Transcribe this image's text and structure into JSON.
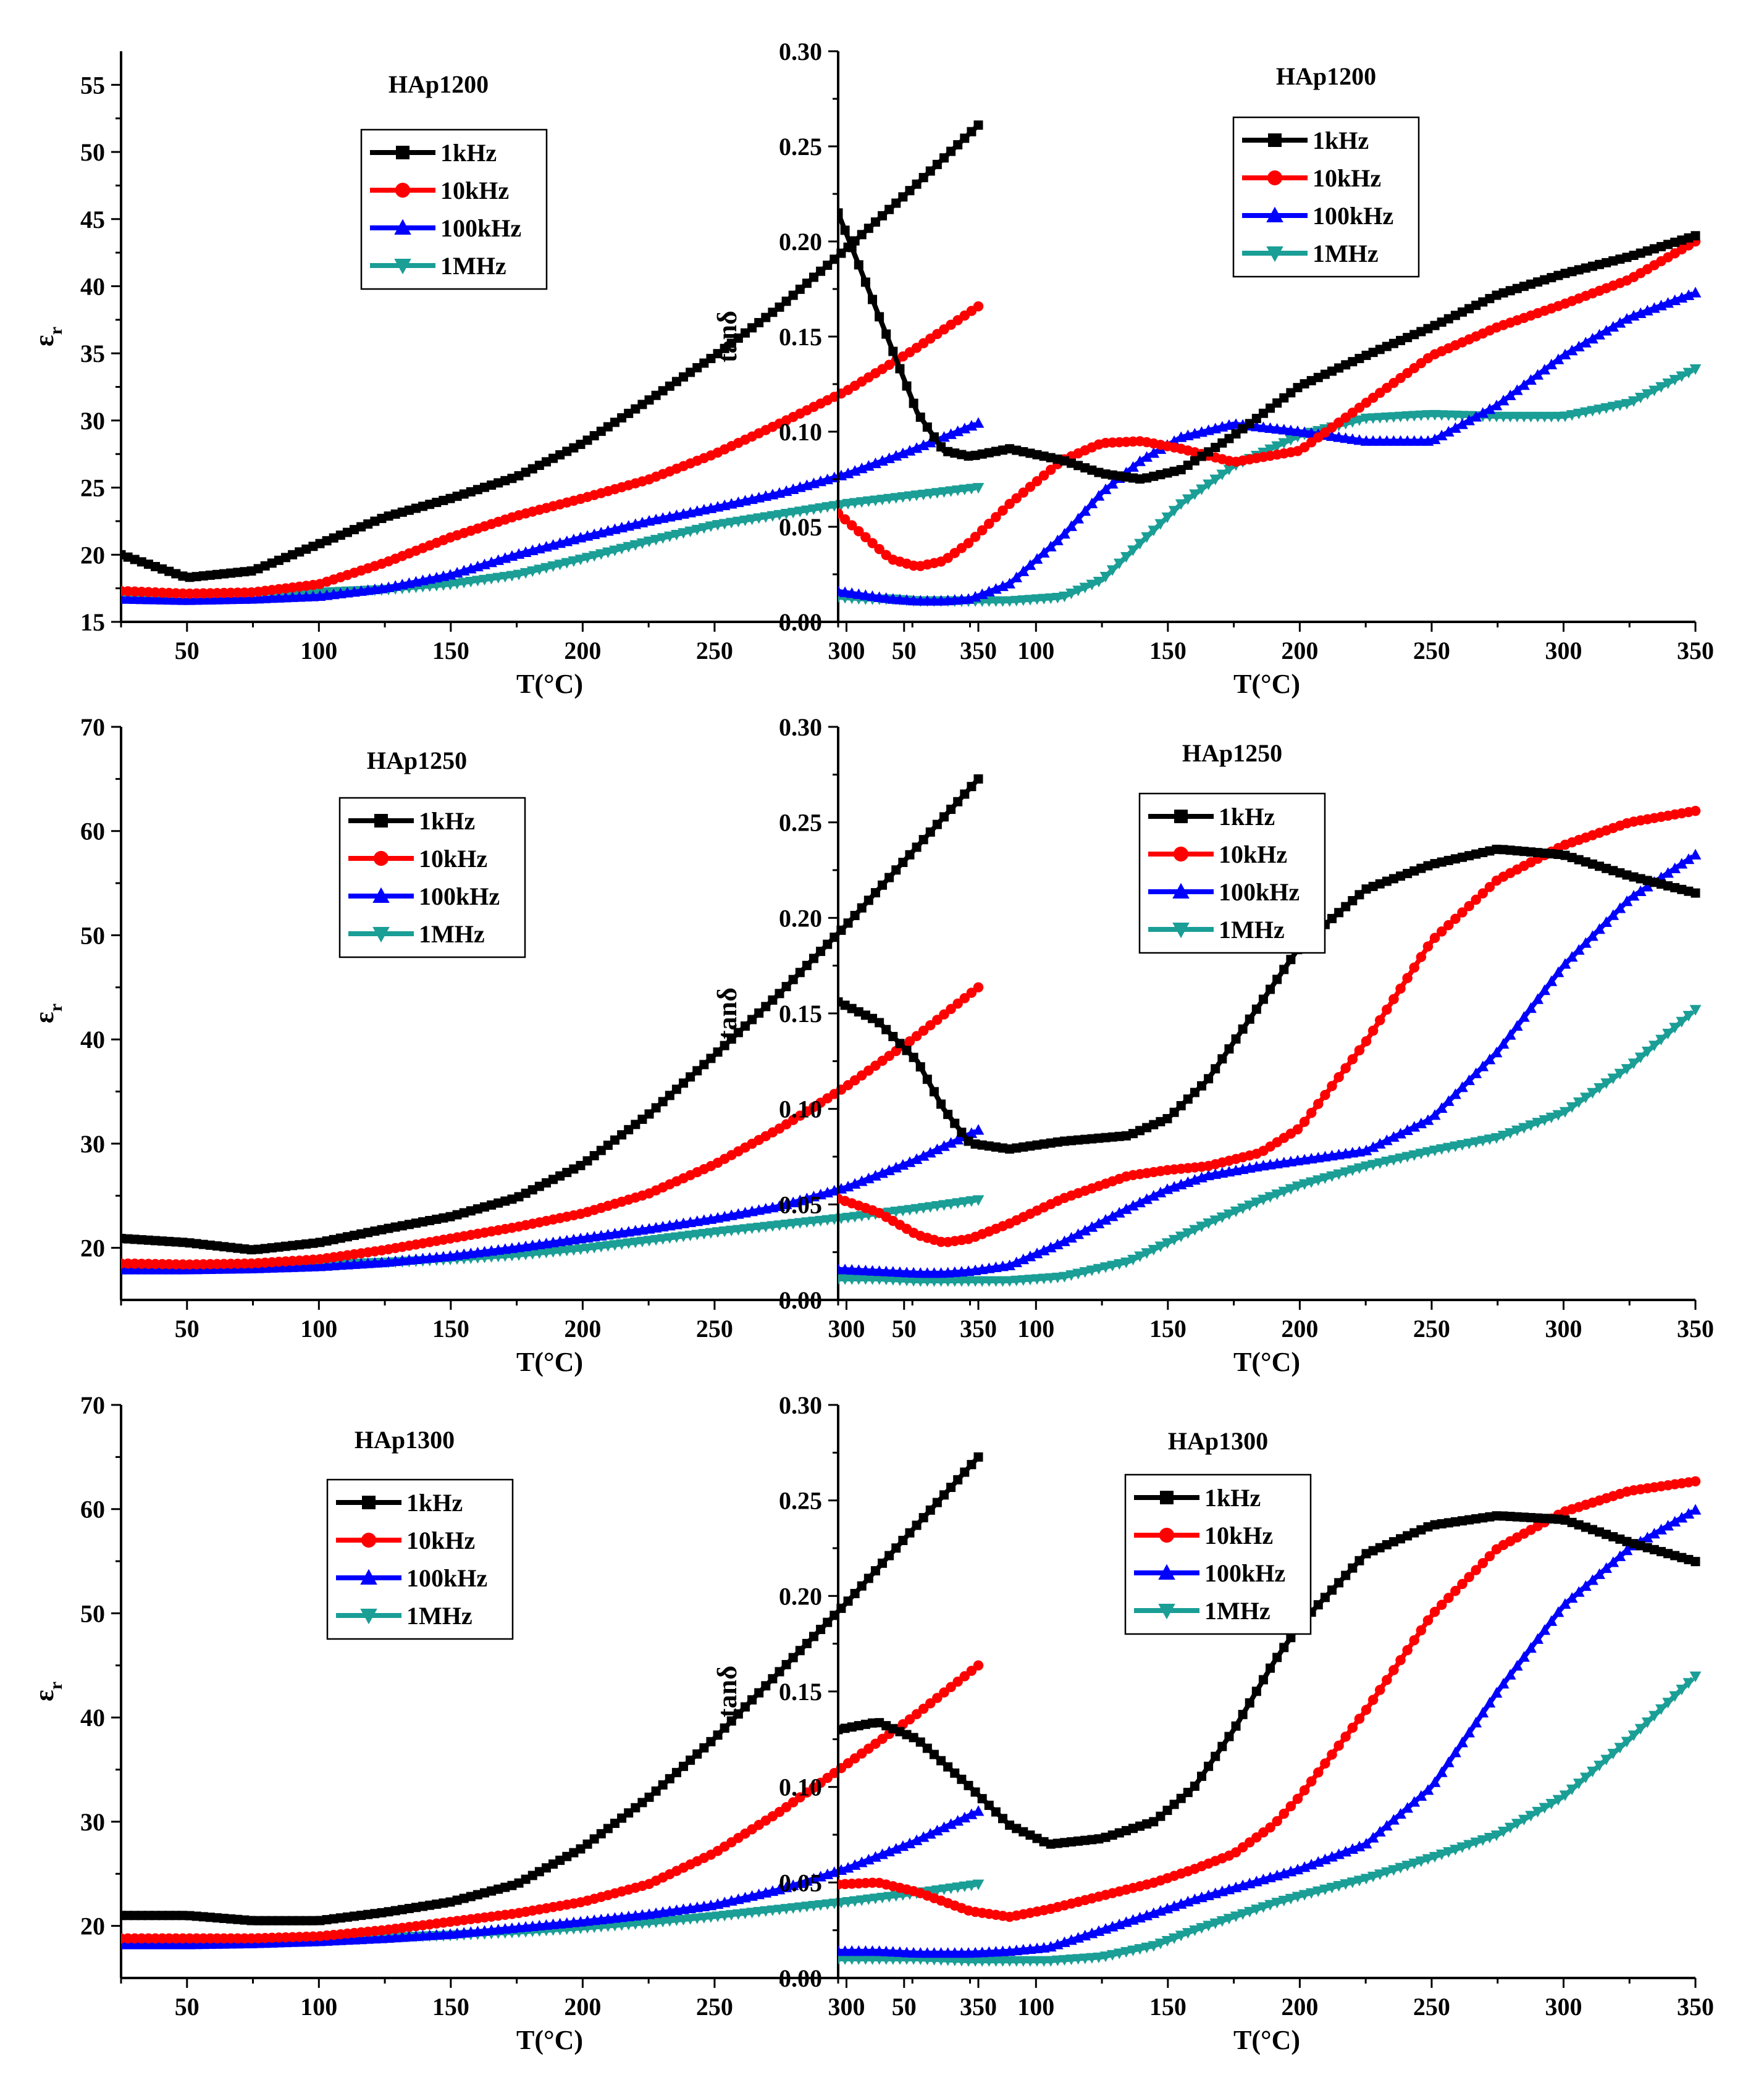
{
  "figure": {
    "xlabel": "T(°C)",
    "ylabel_eps_main": "ε",
    "ylabel_eps_sub": "r",
    "ylabel_tan": "tanδ"
  },
  "series_colors": {
    "1kHz": "#000000",
    "10kHz": "#ff0000",
    "100kHz": "#0000ff",
    "1MHz": "#1a9e96"
  },
  "series_markers": {
    "1kHz": "square",
    "10kHz": "circle",
    "100kHz": "triangle-up",
    "1MHz": "triangle-down"
  },
  "chart_data": [
    {
      "type": "line",
      "title": "HAp1200",
      "xlabel": "T(°C)",
      "ylabel": "εr",
      "xlim": [
        25,
        350
      ],
      "ylim": [
        15,
        57.5
      ],
      "xticks": [
        50,
        100,
        150,
        200,
        250,
        300,
        350
      ],
      "yticks": [
        15,
        20,
        25,
        30,
        35,
        40,
        45,
        50,
        55
      ],
      "ytick_labels": [
        "15",
        "20",
        "25",
        "30",
        "35",
        "40",
        "45",
        "50",
        "55"
      ],
      "x": [
        25,
        50,
        75,
        100,
        125,
        150,
        175,
        200,
        225,
        250,
        275,
        300,
        325,
        350
      ],
      "series": [
        {
          "name": "1kHz",
          "values": [
            20.0,
            18.3,
            18.8,
            20.8,
            22.8,
            24.2,
            25.8,
            28.3,
            31.5,
            34.8,
            38.5,
            42.8,
            47.3,
            52.0
          ]
        },
        {
          "name": "10kHz",
          "values": [
            17.3,
            17.1,
            17.2,
            17.8,
            19.4,
            21.3,
            22.9,
            24.2,
            25.6,
            27.5,
            29.8,
            32.2,
            35.2,
            38.5
          ]
        },
        {
          "name": "100kHz",
          "values": [
            16.7,
            16.6,
            16.7,
            16.9,
            17.5,
            18.5,
            20.0,
            21.3,
            22.5,
            23.5,
            24.6,
            26.0,
            27.8,
            29.8
          ]
        },
        {
          "name": "1MHz",
          "values": [
            17.0,
            17.0,
            17.1,
            17.2,
            17.4,
            17.8,
            18.5,
            19.7,
            21.0,
            22.2,
            23.0,
            23.8,
            24.4,
            25.0
          ]
        }
      ]
    },
    {
      "type": "line",
      "title": "HAp1200",
      "xlabel": "T(°C)",
      "ylabel": "tanδ",
      "xlim": [
        25,
        350
      ],
      "ylim": [
        0,
        0.3
      ],
      "xticks": [
        50,
        100,
        150,
        200,
        250,
        300,
        350
      ],
      "yticks": [
        0,
        0.05,
        0.1,
        0.15,
        0.2,
        0.25,
        0.3
      ],
      "ytick_labels": [
        "0.00",
        "0.05",
        "0.10",
        "0.15",
        "0.20",
        "0.25",
        "0.30"
      ],
      "x": [
        25,
        35,
        45,
        55,
        65,
        75,
        90,
        110,
        125,
        140,
        155,
        175,
        200,
        225,
        250,
        275,
        300,
        325,
        350
      ],
      "series": [
        {
          "name": "1kHz",
          "values": [
            0.215,
            0.18,
            0.145,
            0.11,
            0.09,
            0.087,
            0.091,
            0.085,
            0.078,
            0.075,
            0.08,
            0.098,
            0.124,
            0.14,
            0.155,
            0.172,
            0.183,
            0.192,
            0.203
          ]
        },
        {
          "name": "10kHz",
          "values": [
            0.057,
            0.045,
            0.033,
            0.029,
            0.032,
            0.042,
            0.062,
            0.085,
            0.094,
            0.095,
            0.091,
            0.084,
            0.09,
            0.115,
            0.14,
            0.155,
            0.167,
            0.18,
            0.2
          ]
        },
        {
          "name": "100kHz",
          "values": [
            0.016,
            0.014,
            0.012,
            0.011,
            0.011,
            0.012,
            0.02,
            0.045,
            0.068,
            0.085,
            0.097,
            0.104,
            0.1,
            0.095,
            0.095,
            0.114,
            0.14,
            0.16,
            0.173
          ]
        },
        {
          "name": "1MHz",
          "values": [
            0.013,
            0.012,
            0.012,
            0.011,
            0.011,
            0.011,
            0.011,
            0.013,
            0.022,
            0.042,
            0.062,
            0.082,
            0.098,
            0.107,
            0.109,
            0.108,
            0.108,
            0.115,
            0.133
          ]
        }
      ]
    },
    {
      "type": "line",
      "title": "HAp1250",
      "xlabel": "T(°C)",
      "ylabel": "εr",
      "xlim": [
        25,
        350
      ],
      "ylim": [
        15,
        70
      ],
      "xticks": [
        50,
        100,
        150,
        200,
        250,
        300,
        350
      ],
      "yticks": [
        20,
        30,
        40,
        50,
        60,
        70
      ],
      "ytick_labels": [
        "20",
        "30",
        "40",
        "50",
        "60",
        "70"
      ],
      "x": [
        25,
        50,
        75,
        100,
        125,
        150,
        175,
        200,
        225,
        250,
        275,
        300,
        325,
        350
      ],
      "series": [
        {
          "name": "1kHz",
          "values": [
            20.9,
            20.5,
            19.8,
            20.5,
            21.8,
            23.0,
            24.8,
            28.0,
            32.8,
            38.5,
            44.5,
            51.0,
            58.0,
            65.0
          ]
        },
        {
          "name": "10kHz",
          "values": [
            18.5,
            18.4,
            18.5,
            18.9,
            19.8,
            20.9,
            22.0,
            23.3,
            25.2,
            28.0,
            31.5,
            35.5,
            40.0,
            45.0
          ]
        },
        {
          "name": "100kHz",
          "values": [
            17.9,
            17.9,
            18.0,
            18.2,
            18.6,
            19.2,
            20.0,
            20.9,
            21.8,
            22.8,
            24.0,
            25.8,
            28.3,
            31.3
          ]
        },
        {
          "name": "1MHz",
          "values": [
            18.2,
            18.2,
            18.3,
            18.4,
            18.6,
            18.9,
            19.3,
            19.9,
            20.7,
            21.5,
            22.2,
            22.9,
            23.7,
            24.6
          ]
        }
      ]
    },
    {
      "type": "line",
      "title": "HAp1250",
      "xlabel": "T(°C)",
      "ylabel": "tanδ",
      "xlim": [
        25,
        350
      ],
      "ylim": [
        0,
        0.3
      ],
      "xticks": [
        50,
        100,
        150,
        200,
        250,
        300,
        350
      ],
      "yticks": [
        0,
        0.05,
        0.1,
        0.15,
        0.2,
        0.25,
        0.3
      ],
      "ytick_labels": [
        "0.00",
        "0.05",
        "0.10",
        "0.15",
        "0.20",
        "0.25",
        "0.30"
      ],
      "x": [
        25,
        40,
        55,
        65,
        75,
        90,
        110,
        135,
        150,
        165,
        185,
        200,
        225,
        250,
        275,
        300,
        325,
        350
      ],
      "series": [
        {
          "name": "1kHz",
          "values": [
            0.156,
            0.146,
            0.125,
            0.1,
            0.082,
            0.079,
            0.083,
            0.086,
            0.095,
            0.115,
            0.155,
            0.185,
            0.215,
            0.228,
            0.236,
            0.233,
            0.222,
            0.213
          ]
        },
        {
          "name": "10kHz",
          "values": [
            0.053,
            0.046,
            0.034,
            0.03,
            0.032,
            0.04,
            0.053,
            0.065,
            0.068,
            0.07,
            0.077,
            0.09,
            0.135,
            0.188,
            0.22,
            0.238,
            0.25,
            0.256
          ]
        },
        {
          "name": "100kHz",
          "values": [
            0.016,
            0.015,
            0.014,
            0.014,
            0.015,
            0.018,
            0.03,
            0.048,
            0.058,
            0.065,
            0.07,
            0.073,
            0.078,
            0.095,
            0.13,
            0.175,
            0.21,
            0.233
          ]
        },
        {
          "name": "1MHz",
          "values": [
            0.011,
            0.011,
            0.01,
            0.01,
            0.01,
            0.01,
            0.012,
            0.02,
            0.03,
            0.04,
            0.052,
            0.06,
            0.07,
            0.078,
            0.085,
            0.098,
            0.122,
            0.152
          ]
        }
      ]
    },
    {
      "type": "line",
      "title": "HAp1300",
      "xlabel": "T(°C)",
      "ylabel": "εr",
      "xlim": [
        25,
        350
      ],
      "ylim": [
        15,
        70
      ],
      "xticks": [
        50,
        100,
        150,
        200,
        250,
        300,
        350
      ],
      "yticks": [
        20,
        30,
        40,
        50,
        60,
        70
      ],
      "ytick_labels": [
        "20",
        "30",
        "40",
        "50",
        "60",
        "70"
      ],
      "x": [
        25,
        50,
        75,
        100,
        125,
        150,
        175,
        200,
        225,
        250,
        275,
        300,
        325,
        350
      ],
      "series": [
        {
          "name": "1kHz",
          "values": [
            21.0,
            21.0,
            20.5,
            20.5,
            21.3,
            22.3,
            24.0,
            27.5,
            32.3,
            38.0,
            44.5,
            51.0,
            58.0,
            65.0
          ]
        },
        {
          "name": "10kHz",
          "values": [
            18.8,
            18.8,
            18.8,
            19.0,
            19.6,
            20.4,
            21.2,
            22.3,
            24.0,
            27.0,
            31.0,
            35.5,
            40.0,
            45.0
          ]
        },
        {
          "name": "100kHz",
          "values": [
            18.2,
            18.2,
            18.3,
            18.5,
            18.8,
            19.2,
            19.8,
            20.4,
            21.1,
            22.0,
            23.5,
            25.5,
            28.0,
            31.0
          ]
        },
        {
          "name": "1MHz",
          "values": [
            18.6,
            18.6,
            18.7,
            18.8,
            18.9,
            19.1,
            19.4,
            19.8,
            20.3,
            20.9,
            21.6,
            22.3,
            23.1,
            24.0
          ]
        }
      ]
    },
    {
      "type": "line",
      "title": "HAp1300",
      "xlabel": "T(°C)",
      "ylabel": "tanδ",
      "xlim": [
        25,
        350
      ],
      "ylim": [
        0,
        0.3
      ],
      "xticks": [
        50,
        100,
        150,
        200,
        250,
        300,
        350
      ],
      "yticks": [
        0,
        0.05,
        0.1,
        0.15,
        0.2,
        0.25,
        0.3
      ],
      "ytick_labels": [
        "0.00",
        "0.05",
        "0.10",
        "0.15",
        "0.20",
        "0.25",
        "0.30"
      ],
      "x": [
        25,
        40,
        55,
        75,
        90,
        105,
        125,
        145,
        160,
        175,
        190,
        200,
        225,
        250,
        275,
        300,
        325,
        350
      ],
      "series": [
        {
          "name": "1kHz",
          "values": [
            0.13,
            0.134,
            0.125,
            0.1,
            0.08,
            0.07,
            0.073,
            0.082,
            0.1,
            0.13,
            0.165,
            0.185,
            0.222,
            0.237,
            0.242,
            0.24,
            0.228,
            0.218
          ]
        },
        {
          "name": "10kHz",
          "values": [
            0.049,
            0.05,
            0.045,
            0.035,
            0.032,
            0.036,
            0.043,
            0.05,
            0.057,
            0.065,
            0.08,
            0.095,
            0.14,
            0.19,
            0.225,
            0.244,
            0.255,
            0.26
          ]
        },
        {
          "name": "100kHz",
          "values": [
            0.014,
            0.014,
            0.013,
            0.013,
            0.014,
            0.016,
            0.025,
            0.034,
            0.041,
            0.047,
            0.053,
            0.057,
            0.07,
            0.1,
            0.15,
            0.195,
            0.225,
            0.245
          ]
        },
        {
          "name": "1MHz",
          "values": [
            0.01,
            0.01,
            0.01,
            0.009,
            0.009,
            0.009,
            0.011,
            0.017,
            0.025,
            0.032,
            0.039,
            0.043,
            0.052,
            0.063,
            0.075,
            0.095,
            0.125,
            0.158
          ]
        }
      ]
    }
  ]
}
